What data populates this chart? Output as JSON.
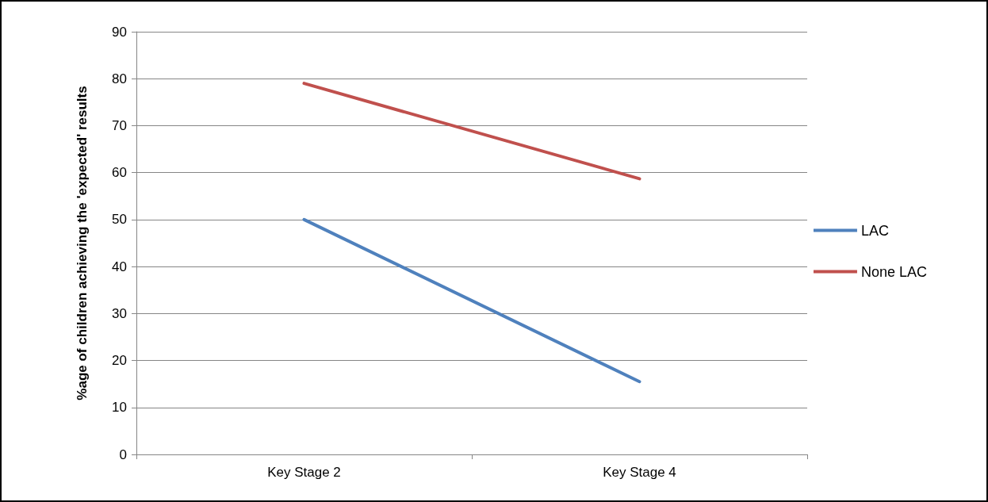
{
  "chart_data": {
    "type": "line",
    "ylabel": "%age of children achieving the 'expected' results",
    "categories": [
      "Key Stage 2",
      "Key Stage 4"
    ],
    "series": [
      {
        "name": "LAC",
        "color": "#4f81bd",
        "values": [
          50,
          15.5
        ]
      },
      {
        "name": "None LAC",
        "color": "#c0504d",
        "values": [
          79,
          58.7
        ]
      }
    ],
    "ylim": [
      0,
      90
    ],
    "yticks": [
      0,
      10,
      20,
      30,
      40,
      50,
      60,
      70,
      80,
      90
    ],
    "grid": "y",
    "legend": "right",
    "marker": "none",
    "line_style": "solid"
  }
}
